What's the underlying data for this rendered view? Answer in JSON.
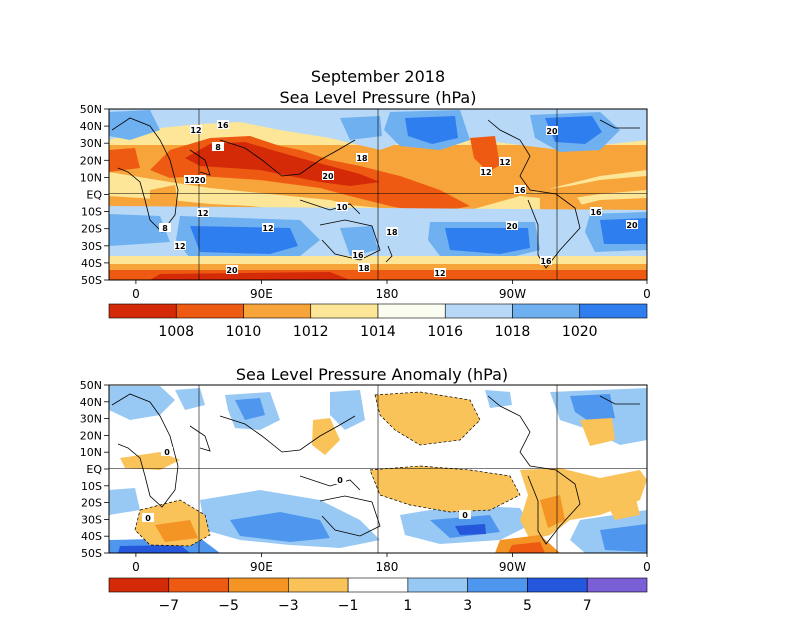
{
  "chart_data": [
    {
      "type": "heatmap",
      "title": "September 2018",
      "subtitle": "Sea Level Pressure (hPa)",
      "lat_labels": [
        "50N",
        "40N",
        "30N",
        "20N",
        "10N",
        "EQ",
        "10S",
        "20S",
        "30S",
        "40S",
        "50S"
      ],
      "lon_labels": [
        "0",
        "90E",
        "180",
        "90W",
        "0"
      ],
      "colorbar": {
        "tick_labels": [
          "1008",
          "1010",
          "1012",
          "1014",
          "1016",
          "1018",
          "1020"
        ],
        "colors": [
          "#d42a08",
          "#ee5a12",
          "#f7a43a",
          "#fde697",
          "#fbfdf1",
          "#b7d8f6",
          "#6fb0f0",
          "#2f7ef0"
        ]
      },
      "contour_labels": [
        "16",
        "8",
        "12",
        "18",
        "20",
        "12",
        "8",
        "12",
        "12",
        "20",
        "10",
        "12",
        "16",
        "20",
        "12",
        "16",
        "20",
        "20",
        "20",
        "16",
        "18",
        "16",
        "12",
        "12",
        "18"
      ]
    },
    {
      "type": "heatmap",
      "title": "Sea Level Pressure Anomaly (hPa)",
      "lat_labels": [
        "50N",
        "40N",
        "30N",
        "20N",
        "10N",
        "EQ",
        "10S",
        "20S",
        "30S",
        "40S",
        "50S"
      ],
      "lon_labels": [
        "0",
        "90E",
        "180",
        "90W",
        "0"
      ],
      "colorbar": {
        "tick_labels": [
          "−7",
          "−5",
          "−3",
          "−1",
          "1",
          "3",
          "5",
          "7"
        ],
        "colors": [
          "#d42a08",
          "#ee5a12",
          "#f39425",
          "#f9c35a",
          "#ffffff",
          "#98c9f5",
          "#4f97ee",
          "#2457dc",
          "#7b5fd6"
        ]
      },
      "contour_labels": [
        "0",
        "0",
        "0",
        "0"
      ]
    }
  ]
}
